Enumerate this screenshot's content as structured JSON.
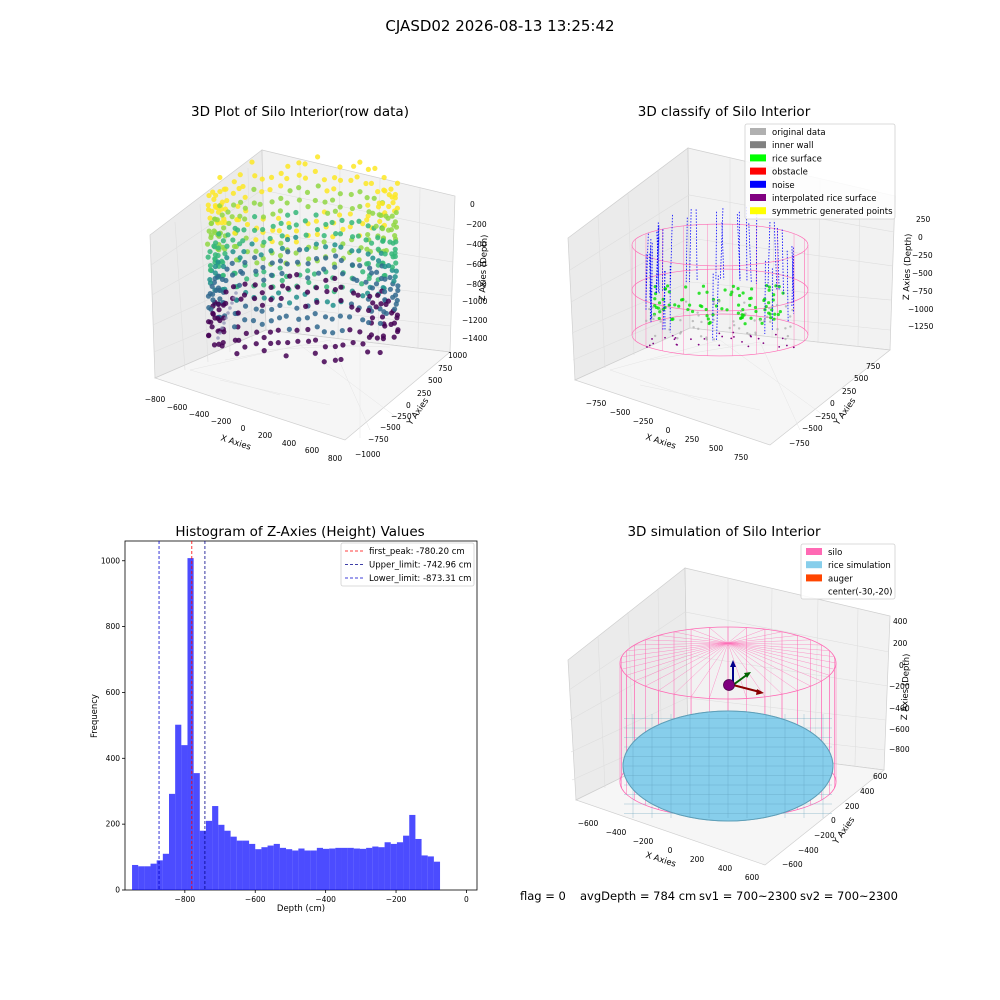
{
  "suptitle": "CJASD02 2026-08-13 13:25:42",
  "footer": {
    "flag": "flag = 0",
    "avg": "avgDepth = 784 cm",
    "sv1": "sv1 = 700~2300",
    "sv2": "sv2 = 700~2300"
  },
  "panels": {
    "raw": {
      "title": "3D Plot of Silo Interior(row data)",
      "xlabel": "X Axies",
      "ylabel": "Y Axies",
      "zlabel": "Z Axies (Depth)",
      "xticks": [
        "−800",
        "−600",
        "−400",
        "−200",
        "0",
        "200",
        "400",
        "600",
        "800"
      ],
      "yticks": [
        "1000",
        "750",
        "500",
        "250",
        "0",
        "−250",
        "−500",
        "−750",
        "−1000"
      ],
      "zticks": [
        "0",
        "−200",
        "−400",
        "−600",
        "−800",
        "−1000",
        "−1200",
        "−1400"
      ],
      "colormap": [
        "#440154",
        "#31688e",
        "#21918c",
        "#35b779",
        "#90d743",
        "#fde725"
      ]
    },
    "classify": {
      "title": "3D classify of Silo Interior",
      "xlabel": "X Axies",
      "ylabel": "Y Axies",
      "zlabel": "Z Axies (Depth)",
      "xticks": [
        "−750",
        "−500",
        "−250",
        "0",
        "250",
        "500",
        "750"
      ],
      "yticks": [
        "750",
        "500",
        "250",
        "0",
        "−250",
        "−500",
        "−750"
      ],
      "zticks": [
        "250",
        "0",
        "−250",
        "−500",
        "−750",
        "−1000",
        "−1250"
      ],
      "legend": [
        {
          "label": "original data",
          "color": "#b0b0b0"
        },
        {
          "label": "inner wall",
          "color": "#808080"
        },
        {
          "label": "rice surface",
          "color": "#00ff00"
        },
        {
          "label": "obstacle",
          "color": "#ff0000"
        },
        {
          "label": "noise",
          "color": "#0000ff"
        },
        {
          "label": "interpolated rice surface",
          "color": "#800080"
        },
        {
          "label": "symmetric generated points",
          "color": "#ffff00"
        }
      ]
    },
    "simulation": {
      "title": "3D simulation of Silo Interior",
      "xlabel": "X Axies",
      "ylabel": "Y Axies",
      "zlabel": "Z Axies (Depth)",
      "xticks": [
        "−600",
        "−400",
        "−200",
        "0",
        "200",
        "400",
        "600"
      ],
      "yticks": [
        "600",
        "400",
        "200",
        "0",
        "−200",
        "−400",
        "−600"
      ],
      "zticks": [
        "400",
        "200",
        "0",
        "−200",
        "−400",
        "−600",
        "−800"
      ],
      "legend": [
        {
          "label": "silo",
          "color": "#ff69b4"
        },
        {
          "label": "rice simulation",
          "color": "#87ceeb"
        },
        {
          "label": "auger",
          "color": "#ff4500"
        },
        {
          "label": "center(-30,-20)",
          "color": ""
        }
      ]
    }
  },
  "chart_data": {
    "type": "bar",
    "title": "Histogram of Z-Axies (Height) Values",
    "xlabel": "Depth (cm)",
    "ylabel": "Frequency",
    "xlim": [
      -970,
      30
    ],
    "ylim": [
      0,
      1060
    ],
    "xticks": [
      -800,
      -600,
      -400,
      -200,
      0
    ],
    "xtick_labels": [
      "−800",
      "−600",
      "−400",
      "−200",
      "0"
    ],
    "yticks": [
      0,
      200,
      400,
      600,
      800,
      1000
    ],
    "bar_color": "#0000ff",
    "bin_width": 17.5,
    "bin_start": -950,
    "values": [
      76,
      72,
      72,
      80,
      90,
      110,
      292,
      502,
      440,
      1008,
      355,
      180,
      210,
      255,
      198,
      180,
      162,
      150,
      150,
      140,
      124,
      130,
      135,
      140,
      128,
      124,
      120,
      126,
      120,
      120,
      128,
      125,
      126,
      128,
      128,
      128,
      126,
      125,
      128,
      132,
      130,
      145,
      140,
      145,
      165,
      228,
      155,
      105,
      102,
      86
    ],
    "vlines": [
      {
        "x": -780.2,
        "label": "first_peak: -780.20 cm",
        "color": "#ff0000"
      },
      {
        "x": -742.96,
        "label": "Upper_limit: -742.96 cm",
        "color": "#00008b"
      },
      {
        "x": -873.31,
        "label": "Lower_limit: -873.31 cm",
        "color": "#0000cd"
      }
    ],
    "legend": "top-right"
  }
}
